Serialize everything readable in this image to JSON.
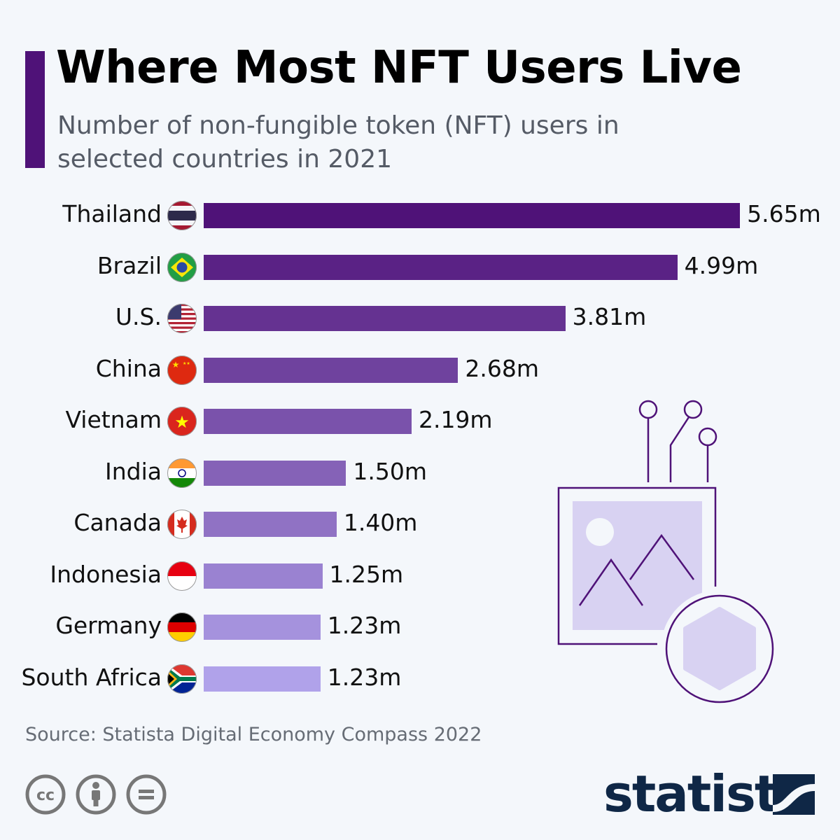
{
  "header": {
    "title": "Where Most NFT Users Live",
    "subtitle": "Number of non-fungible token (NFT) users in selected countries in 2021"
  },
  "footer": {
    "source": "Source: Statista Digital Economy Compass 2022",
    "brand": "statista",
    "license_icons": [
      "cc-icon",
      "attribution-icon",
      "no-derivatives-icon"
    ]
  },
  "colors": {
    "accent": "#4f1278",
    "bar_dark": "#4f1278",
    "bar_light": "#b0a2ea",
    "brand": "#0f2746"
  },
  "chart_data": {
    "type": "bar",
    "orientation": "horizontal",
    "unit": "m",
    "categories": [
      "Thailand",
      "Brazil",
      "U.S.",
      "China",
      "Vietnam",
      "India",
      "Canada",
      "Indonesia",
      "Germany",
      "South Africa"
    ],
    "values": [
      5.65,
      4.99,
      3.81,
      2.68,
      2.19,
      1.5,
      1.4,
      1.25,
      1.23,
      1.23
    ],
    "labels": [
      "5.65m",
      "4.99m",
      "3.81m",
      "2.68m",
      "2.19m",
      "1.50m",
      "1.40m",
      "1.25m",
      "1.23m",
      "1.23m"
    ],
    "flags": [
      "thailand",
      "brazil",
      "us",
      "china",
      "vietnam",
      "india",
      "canada",
      "indonesia",
      "germany",
      "south-africa"
    ],
    "grid": false
  }
}
